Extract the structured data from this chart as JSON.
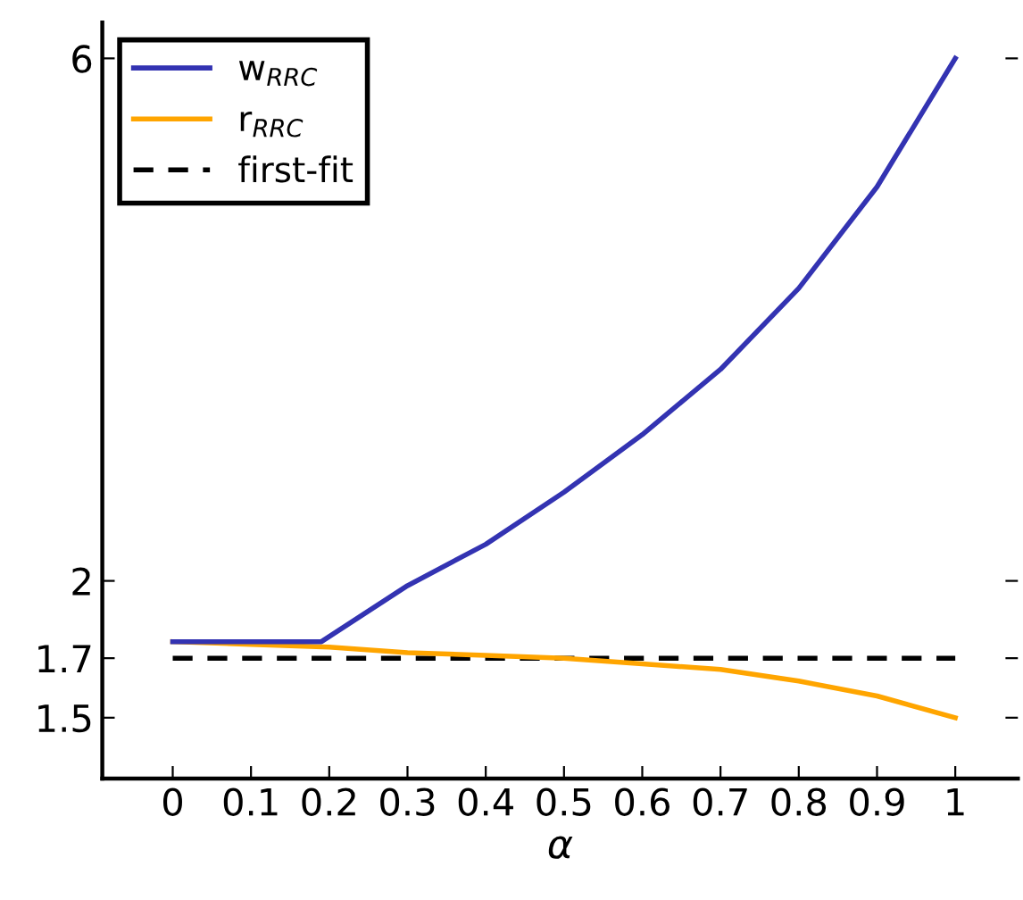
{
  "chart_data": {
    "type": "line",
    "xlabel": "α",
    "log": "y",
    "xlim": [
      -0.09,
      1.08
    ],
    "ylim": [
      1.32,
      6.47
    ],
    "xticks": [
      0,
      0.1,
      0.2,
      0.3,
      0.4,
      0.5,
      0.6,
      0.7,
      0.8,
      0.9,
      1
    ],
    "yticks": [
      1.5,
      1.7,
      2,
      6
    ],
    "grid": false,
    "legend": "top left",
    "marker": "none",
    "series": [
      {
        "name": "w$_{RRC}$",
        "color": "#3333b2",
        "line_style": "solid",
        "x": [
          0,
          0.1,
          0.19,
          0.3,
          0.4,
          0.5,
          0.6,
          0.7,
          0.8,
          0.9,
          1
        ],
        "values": [
          1.76,
          1.76,
          1.76,
          1.98,
          2.16,
          2.41,
          2.72,
          3.12,
          3.7,
          4.58,
          6
        ]
      },
      {
        "name": "r$_{RRC}$",
        "color": "#ffa500",
        "line_style": "solid",
        "x": [
          0,
          0.1,
          0.2,
          0.3,
          0.4,
          0.5,
          0.6,
          0.7,
          0.8,
          0.9,
          1
        ],
        "values": [
          1.76,
          1.75,
          1.74,
          1.72,
          1.71,
          1.7,
          1.68,
          1.66,
          1.62,
          1.57,
          1.5
        ]
      },
      {
        "name": "first-fit",
        "color": "#000000",
        "line_style": "dashed",
        "x": [
          0,
          1
        ],
        "values": [
          1.7,
          1.7
        ]
      }
    ]
  }
}
